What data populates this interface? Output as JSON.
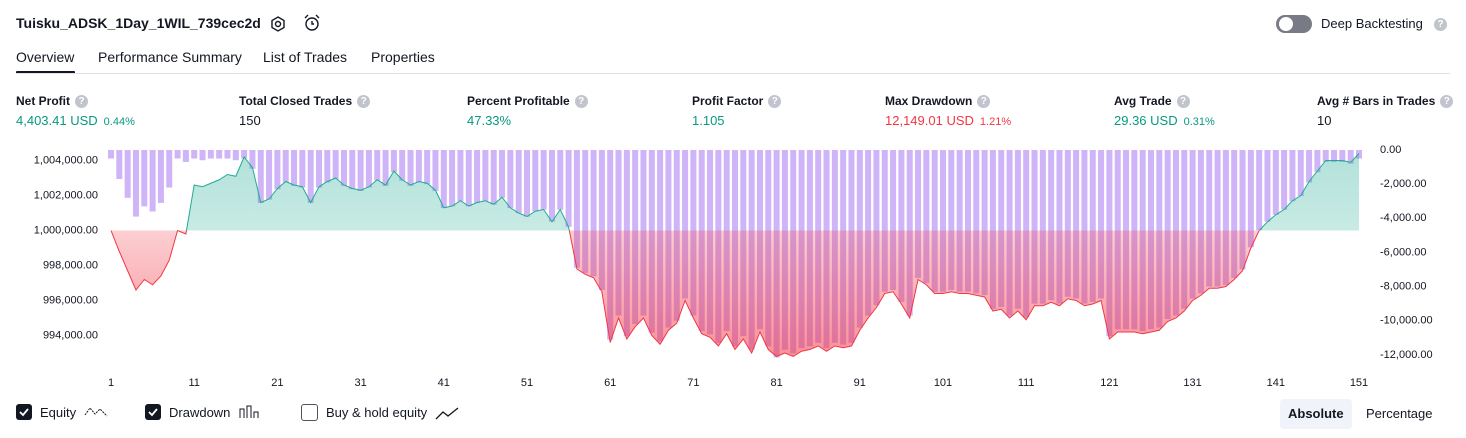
{
  "header": {
    "title": "Tuisku_ADSK_1Day_1WIL_739cec2d",
    "deep_backtesting": "Deep Backtesting"
  },
  "tabs": [
    "Overview",
    "Performance Summary",
    "List of Trades",
    "Properties"
  ],
  "metrics": [
    {
      "label": "Net Profit",
      "value": "4,403.41 USD",
      "percent": "0.44%",
      "tone": "positive"
    },
    {
      "label": "Total Closed Trades",
      "value": "150",
      "tone": "neutral"
    },
    {
      "label": "Percent Profitable",
      "value": "47.33%",
      "tone": "positive"
    },
    {
      "label": "Profit Factor",
      "value": "1.105",
      "tone": "positive"
    },
    {
      "label": "Max Drawdown",
      "value": "12,149.01 USD",
      "percent": "1.21%",
      "tone": "negative"
    },
    {
      "label": "Avg Trade",
      "value": "29.36 USD",
      "percent": "0.31%",
      "tone": "positive"
    },
    {
      "label": "Avg # Bars in Trades",
      "value": "10",
      "tone": "neutral"
    }
  ],
  "chart_data": {
    "type": "line",
    "x": [
      1,
      2,
      3,
      4,
      5,
      6,
      7,
      8,
      9,
      10,
      11,
      12,
      13,
      14,
      15,
      16,
      17,
      18,
      19,
      20,
      21,
      22,
      23,
      24,
      25,
      26,
      27,
      28,
      29,
      30,
      31,
      32,
      33,
      34,
      35,
      36,
      37,
      38,
      39,
      40,
      41,
      42,
      43,
      44,
      45,
      46,
      47,
      48,
      49,
      50,
      51,
      52,
      53,
      54,
      55,
      56,
      57,
      58,
      59,
      60,
      61,
      62,
      63,
      64,
      65,
      66,
      67,
      68,
      69,
      70,
      71,
      72,
      73,
      74,
      75,
      76,
      77,
      78,
      79,
      80,
      81,
      82,
      83,
      84,
      85,
      86,
      87,
      88,
      89,
      90,
      91,
      92,
      93,
      94,
      95,
      96,
      97,
      98,
      99,
      100,
      101,
      102,
      103,
      104,
      105,
      106,
      107,
      108,
      109,
      110,
      111,
      112,
      113,
      114,
      115,
      116,
      117,
      118,
      119,
      120,
      121,
      122,
      123,
      124,
      125,
      126,
      127,
      128,
      129,
      130,
      131,
      132,
      133,
      134,
      135,
      136,
      137,
      138,
      139,
      140,
      141,
      142,
      143,
      144,
      145,
      146,
      147,
      148,
      149,
      150,
      151
    ],
    "series": [
      {
        "name": "Equity",
        "type": "line",
        "axis": "y",
        "color": "#22ab94",
        "negative_color": "#f23645",
        "values": [
          1000000,
          998800,
          997700,
          996600,
          997200,
          996900,
          997400,
          998300,
          1000000,
          999800,
          1002600,
          1002500,
          1002700,
          1002900,
          1003200,
          1003100,
          1004200,
          1003600,
          1001600,
          1001800,
          1002400,
          1002800,
          1002600,
          1002500,
          1001600,
          1002500,
          1002800,
          1003000,
          1002600,
          1002400,
          1002300,
          1002500,
          1002900,
          1002600,
          1003400,
          1002900,
          1002600,
          1002800,
          1002700,
          1002300,
          1001300,
          1001400,
          1001700,
          1001400,
          1001600,
          1001700,
          1001500,
          1001900,
          1001300,
          1001000,
          1000800,
          1001100,
          1001200,
          1000500,
          1001200,
          1000200,
          997800,
          997500,
          997300,
          996500,
          993600,
          995000,
          993800,
          994500,
          995000,
          994000,
          993500,
          994300,
          994700,
          996000,
          995000,
          994100,
          993900,
          993400,
          994100,
          993200,
          993800,
          993000,
          994200,
          993200,
          992800,
          993000,
          992800,
          993100,
          993200,
          993400,
          993100,
          993400,
          993300,
          993400,
          994300,
          995000,
          995600,
          996400,
          996500,
          995800,
          995000,
          997200,
          996900,
          996400,
          996400,
          996500,
          996400,
          996400,
          996300,
          996200,
          995400,
          995500,
          995000,
          995400,
          994900,
          995700,
          995700,
          995900,
          995700,
          996100,
          996000,
          995700,
          995800,
          996000,
          993800,
          994200,
          994200,
          994200,
          994100,
          994200,
          994300,
          994800,
          995000,
          995400,
          996000,
          996300,
          996700,
          996700,
          996800,
          997200,
          997700,
          999000,
          1000000,
          1000500,
          1000900,
          1001200,
          1001700,
          1002000,
          1002800,
          1003400,
          1004000,
          1004000,
          1004000,
          1003900,
          1004403.41
        ]
      },
      {
        "name": "Drawdown",
        "type": "bar",
        "axis": "y2",
        "color": "#cfb4f7",
        "values": [
          -500,
          -1700,
          -2800,
          -3900,
          -3300,
          -3600,
          -3100,
          -2200,
          -500,
          -700,
          -500,
          -600,
          -500,
          -500,
          -500,
          -600,
          -500,
          -1100,
          -3100,
          -2900,
          -2300,
          -1900,
          -2100,
          -2200,
          -3100,
          -2200,
          -1900,
          -1700,
          -2100,
          -2300,
          -2400,
          -2200,
          -1800,
          -2100,
          -1300,
          -1800,
          -2100,
          -1900,
          -2000,
          -2400,
          -3400,
          -3300,
          -3000,
          -3300,
          -3100,
          -3000,
          -3200,
          -2800,
          -3400,
          -3700,
          -3900,
          -3600,
          -3500,
          -4200,
          -3500,
          -4500,
          -6900,
          -7200,
          -7400,
          -8200,
          -11100,
          -9700,
          -10900,
          -10200,
          -9700,
          -10700,
          -11200,
          -10400,
          -10000,
          -8700,
          -9700,
          -10600,
          -10800,
          -11300,
          -10600,
          -11500,
          -10900,
          -11700,
          -10500,
          -11500,
          -12149.01,
          -11700,
          -11900,
          -11600,
          -11500,
          -11300,
          -11600,
          -11300,
          -11400,
          -11300,
          -10400,
          -9700,
          -9100,
          -8300,
          -8200,
          -8900,
          -9700,
          -7500,
          -7800,
          -8300,
          -8300,
          -8200,
          -8300,
          -8300,
          -8400,
          -8500,
          -9300,
          -9200,
          -9700,
          -9300,
          -9800,
          -9000,
          -9000,
          -8800,
          -9000,
          -8600,
          -8700,
          -9000,
          -8900,
          -8700,
          -10900,
          -10500,
          -10500,
          -10500,
          -10600,
          -10500,
          -10400,
          -9900,
          -9700,
          -9300,
          -8700,
          -8400,
          -8000,
          -8000,
          -7900,
          -7500,
          -7000,
          -5700,
          -4700,
          -4200,
          -3800,
          -3500,
          -3000,
          -2700,
          -1900,
          -1300,
          -700,
          -700,
          -700,
          -800,
          -500
        ]
      }
    ],
    "baseline": 1000000,
    "xlim": [
      1,
      151
    ],
    "xticks": [
      1,
      11,
      21,
      31,
      41,
      51,
      61,
      71,
      81,
      91,
      101,
      111,
      121,
      131,
      141,
      151
    ],
    "ylim": [
      992600,
      1004600
    ],
    "yticks": [
      {
        "value": 994000,
        "label": "994,000.00"
      },
      {
        "value": 996000,
        "label": "996,000.00"
      },
      {
        "value": 998000,
        "label": "998,000.00"
      },
      {
        "value": 1000000,
        "label": "1,000,000.00"
      },
      {
        "value": 1002000,
        "label": "1,002,000.00"
      },
      {
        "value": 1004000,
        "label": "1,004,000.00"
      }
    ],
    "y2lim": [
      -12300,
      0
    ],
    "y2ticks": [
      {
        "value": 0,
        "label": "0.00"
      },
      {
        "value": -2000,
        "label": "-2,000.00"
      },
      {
        "value": -4000,
        "label": "-4,000.00"
      },
      {
        "value": -6000,
        "label": "-6,000.00"
      },
      {
        "value": -8000,
        "label": "-8,000.00"
      },
      {
        "value": -10000,
        "label": "-10,000.00"
      },
      {
        "value": -12000,
        "label": "-12,000.00"
      }
    ],
    "grid": false
  },
  "toggles": {
    "buy_hold": "Buy & hold equity"
  },
  "view_modes": [
    "Absolute",
    "Percentage"
  ]
}
